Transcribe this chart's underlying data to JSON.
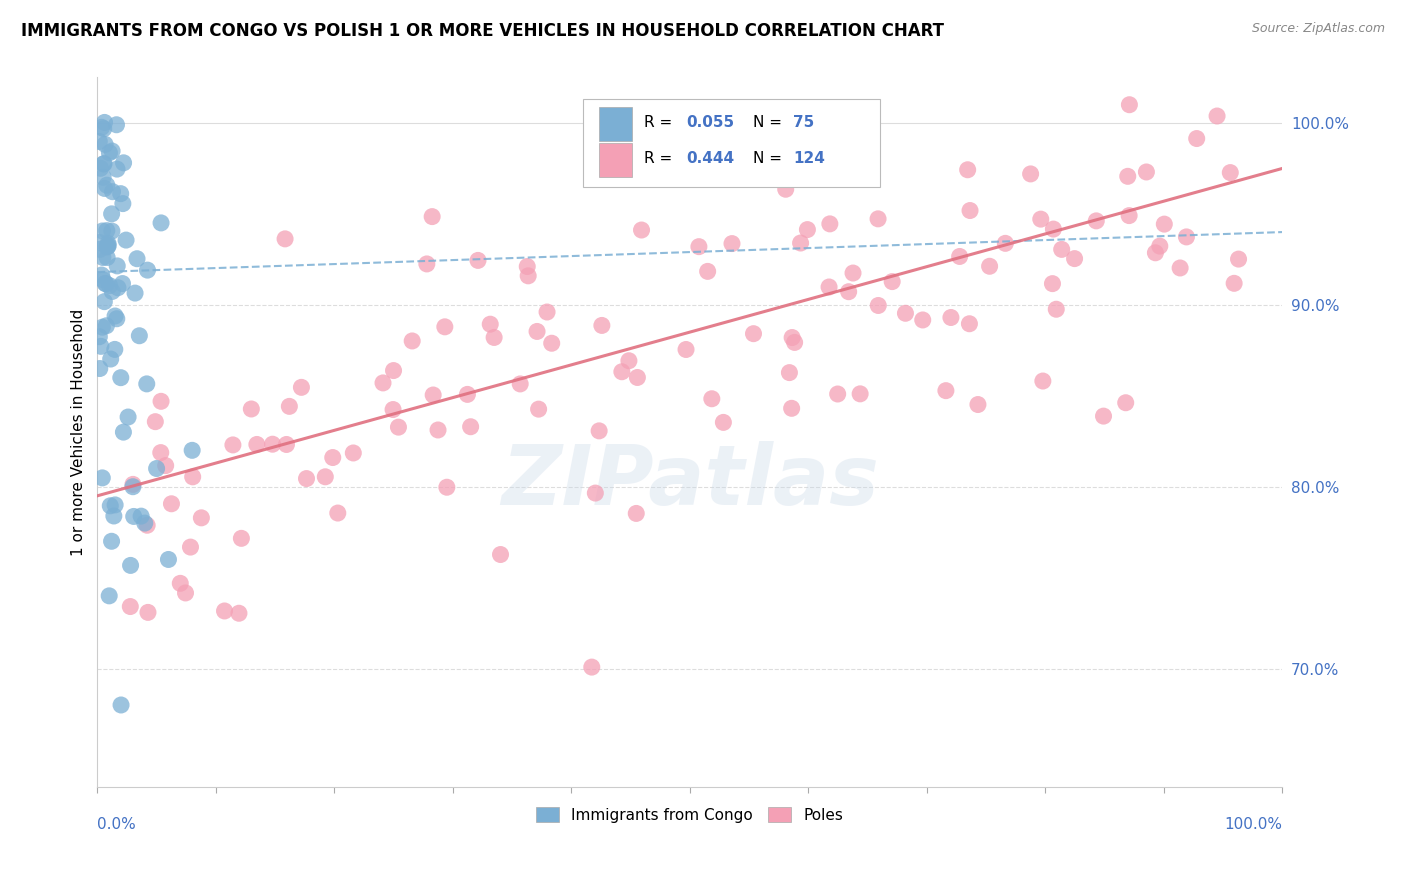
{
  "title": "IMMIGRANTS FROM CONGO VS POLISH 1 OR MORE VEHICLES IN HOUSEHOLD CORRELATION CHART",
  "source": "Source: ZipAtlas.com",
  "ylabel": "1 or more Vehicles in Household",
  "congo_color": "#7bafd4",
  "poles_color": "#f4a0b5",
  "congo_line_color": "#7bafd4",
  "poles_line_color": "#e07080",
  "congo_R": 0.055,
  "congo_N": 75,
  "poles_R": 0.444,
  "poles_N": 124,
  "legend_color": "#4472c4",
  "watermark": "ZIPatlas",
  "xmin": 0.0,
  "xmax": 1.0,
  "ymin": 0.635,
  "ymax": 1.025,
  "ytick_vals": [
    1.0,
    0.9,
    0.8,
    0.7
  ],
  "ytick_labels": [
    "100.0%",
    "90.0%",
    "80.0%",
    "70.0%"
  ],
  "grid_color": "#dddddd",
  "top_grid_color": "#cccccc",
  "congo_trend_start_y": 0.918,
  "congo_trend_end_y": 0.94,
  "poles_trend_start_y": 0.795,
  "poles_trend_end_y": 0.975
}
